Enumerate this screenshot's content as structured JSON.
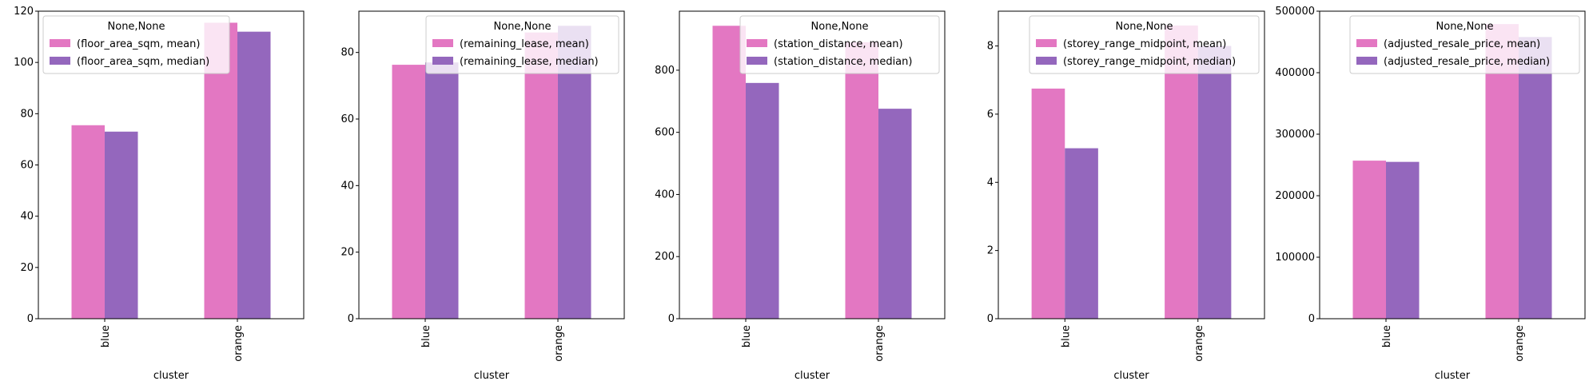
{
  "colors": {
    "mean": "#e377c2",
    "median": "#9467bd"
  },
  "legend_title": "None,None",
  "chart_data": [
    {
      "type": "bar",
      "categories": [
        "blue",
        "orange"
      ],
      "xlabel": "cluster",
      "ylim": [
        0,
        120
      ],
      "yticks": [
        0,
        20,
        40,
        60,
        80,
        100,
        120
      ],
      "legend_loc": "upper-left",
      "series": [
        {
          "name": "(floor_area_sqm, mean)",
          "values": [
            75.5,
            115.5
          ]
        },
        {
          "name": "(floor_area_sqm, median)",
          "values": [
            73,
            112
          ]
        }
      ]
    },
    {
      "type": "bar",
      "categories": [
        "blue",
        "orange"
      ],
      "xlabel": "cluster",
      "ylim": [
        0,
        92.4
      ],
      "yticks": [
        0,
        20,
        40,
        60,
        80
      ],
      "legend_loc": "upper-right",
      "series": [
        {
          "name": "(remaining_lease, mean)",
          "values": [
            76.3,
            86
          ]
        },
        {
          "name": "(remaining_lease, median)",
          "values": [
            77,
            88
          ]
        }
      ]
    },
    {
      "type": "bar",
      "categories": [
        "blue",
        "orange"
      ],
      "xlabel": "cluster",
      "ylim": [
        0,
        990
      ],
      "yticks": [
        0,
        200,
        400,
        600,
        800
      ],
      "legend_loc": "upper-right",
      "series": [
        {
          "name": "(station_distance, mean)",
          "values": [
            943,
            890
          ]
        },
        {
          "name": "(station_distance, median)",
          "values": [
            759,
            676
          ]
        }
      ]
    },
    {
      "type": "bar",
      "categories": [
        "blue",
        "orange"
      ],
      "xlabel": "cluster",
      "ylim": [
        0,
        9.02
      ],
      "yticks": [
        0,
        2,
        4,
        6,
        8
      ],
      "legend_loc": "upper-right",
      "series": [
        {
          "name": "(storey_range_midpoint, mean)",
          "values": [
            6.75,
            8.6
          ]
        },
        {
          "name": "(storey_range_midpoint, median)",
          "values": [
            5,
            8
          ]
        }
      ]
    },
    {
      "type": "bar",
      "categories": [
        "blue",
        "orange"
      ],
      "xlabel": "cluster",
      "ylim": [
        0,
        500000
      ],
      "yticks": [
        0,
        100000,
        200000,
        300000,
        400000,
        500000
      ],
      "legend_loc": "upper-right",
      "series": [
        {
          "name": "(adjusted_resale_price, mean)",
          "values": [
            257000,
            479000
          ]
        },
        {
          "name": "(adjusted_resale_price, median)",
          "values": [
            255000,
            458000
          ]
        }
      ]
    }
  ]
}
